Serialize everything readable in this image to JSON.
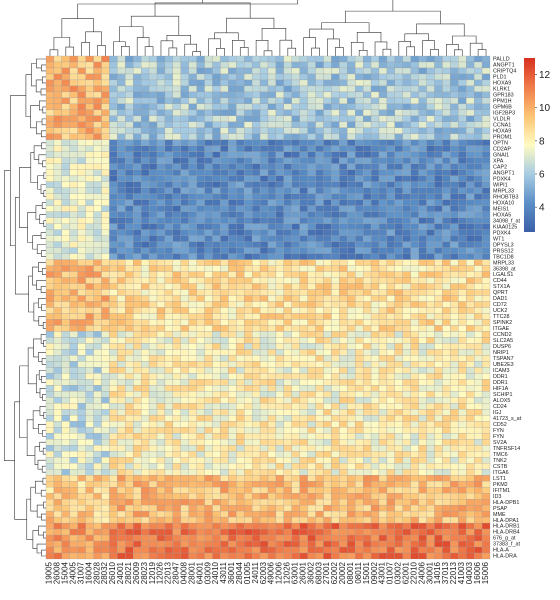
{
  "chart_data": {
    "type": "heatmap",
    "title": "",
    "xlabel": "",
    "ylabel": "",
    "rows": [
      "PALLD",
      "ANGPT1",
      "CRIPTQ4",
      "PLD1",
      "HOXA9",
      "KLRK1",
      "GPR183",
      "PPM1H",
      "GPM6B",
      "IGF2BP3",
      "VLDLR",
      "CCNA1",
      "HOXA9",
      "PROM1",
      "OPTN",
      "CD2AP",
      "GNAI1",
      "XPA",
      "CAP2",
      "ANGPT1",
      "PDXK4",
      "WIPI1",
      "MRPL33",
      "RHOBTB3",
      "HOXA10",
      "MEIS1",
      "HOXA5",
      "34098_f_at",
      "KIAA0125",
      "PDXK4",
      "WT1",
      "DPYSL3",
      "PRSS12",
      "TBC1D8",
      "MRPL33",
      "36398_at",
      "LGALS1",
      "CD44",
      "STX1A",
      "QPRT",
      "DAD1",
      "CD72",
      "UCK2",
      "TTC28",
      "SPINK2",
      "ITGAE",
      "CCND2",
      "SLC2A5",
      "DUSP6",
      "NRIP1",
      "TSPAN7",
      "UBE2E3",
      "ICAM3",
      "DDR1",
      "DDR1",
      "HIF1A",
      "SCHIP1",
      "ALOX5",
      "CD24",
      "IGJ",
      "41723_s_at",
      "CD52",
      "FYN",
      "FYN",
      "SV2A",
      "TNFRSF14",
      "TMC6",
      "TNK2",
      "CSTB",
      "ITGA6",
      "LST1",
      "PKM2",
      "IFITM1",
      "ID3",
      "HLA-DPB1",
      "PSAP",
      "MME",
      "HLA-DPA1",
      "HLA-DRB1",
      "HLA-DRB4",
      "676_g_at",
      "37383_f_at",
      "HLA-A",
      "HLA-DRA"
    ],
    "columns": [
      "19005",
      "26008",
      "15004",
      "24005",
      "31007",
      "16004",
      "28028",
      "28032",
      "26010",
      "24001",
      "28021",
      "26009",
      "28023",
      "12019",
      "12026",
      "22013",
      "28047",
      "04008",
      "28001",
      "64001",
      "03009",
      "24010",
      "43011",
      "36001",
      "28044",
      "01005",
      "24011",
      "62003",
      "49006",
      "12006",
      "12026",
      "63001",
      "26001",
      "36002",
      "68003",
      "27001",
      "62002",
      "20002",
      "08001",
      "08011",
      "15001",
      "09002",
      "43001",
      "01007",
      "03002",
      "62001",
      "22010",
      "24006",
      "30001",
      "14016",
      "37013",
      "22013",
      "41003",
      "04003",
      "16006",
      "15006"
    ],
    "row_groups": [
      {
        "start": 0,
        "end": 13,
        "level": 6.0,
        "span": 1.3,
        "left_level": 9.8
      },
      {
        "start": 14,
        "end": 33,
        "level": 4.0,
        "span": 1.0,
        "left_level": 7.2
      },
      {
        "start": 34,
        "end": 45,
        "level": 8.6,
        "span": 1.2,
        "left_level": 9.6
      },
      {
        "start": 46,
        "end": 69,
        "level": 8.0,
        "span": 1.3,
        "left_level": 6.8
      },
      {
        "start": 70,
        "end": 77,
        "level": 9.6,
        "span": 1.2,
        "left_level": 9.2
      },
      {
        "start": 78,
        "end": 83,
        "level": 11.4,
        "span": 1.0,
        "left_level": 10.6
      }
    ],
    "left_cluster_size": 8,
    "colorbar": {
      "min": 2.5,
      "max": 13,
      "ticks": [
        4,
        6,
        8,
        10,
        12
      ],
      "colors": [
        "#3b5fa8",
        "#5b8fc6",
        "#a7cce3",
        "#fffbc2",
        "#fdc474",
        "#f07c4a",
        "#d7301f"
      ]
    }
  }
}
